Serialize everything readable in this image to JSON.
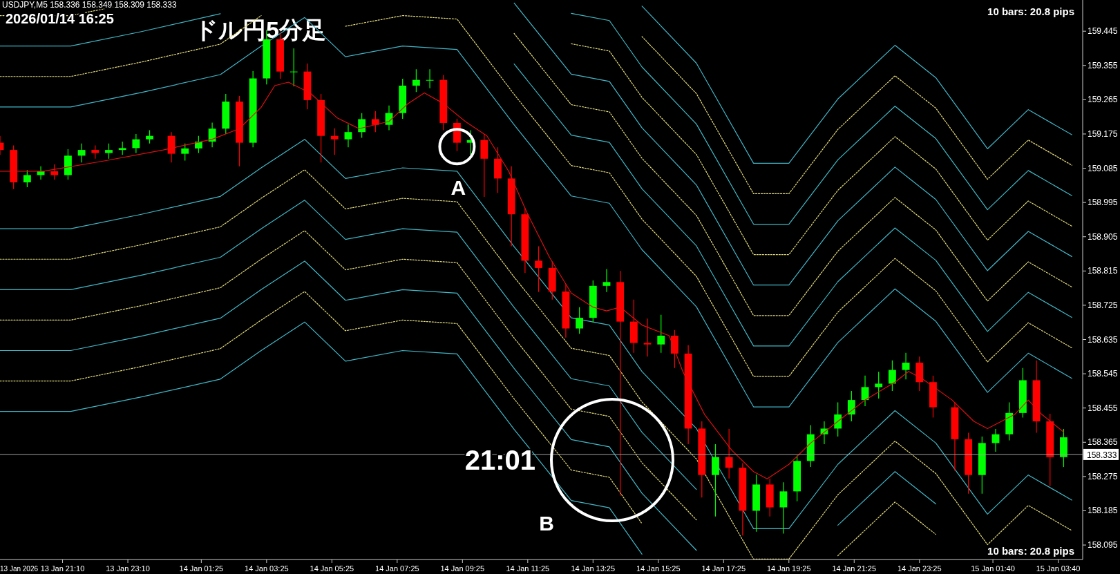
{
  "chart_data": {
    "type": "candlestick",
    "title": "ドル円5分足",
    "annotations": [
      "USDJPY,M5  158.336 158.349 158.309 158.333",
      "2026/01/14 16:25",
      "10 bars: 20.8 pips",
      "10 bars: 20.8 pips",
      "21:01",
      "B",
      "13 Jan 2026",
      {
        "text": "A",
        "x": "2026-01-14T09:15",
        "y": 159.142
      }
    ],
    "x": [
      "2026-01-13T19:15",
      "2026-01-13T19:40",
      "2026-01-13T20:05",
      "2026-01-13T20:30",
      "2026-01-13T20:55",
      "2026-01-13T21:20",
      "2026-01-13T21:45",
      "2026-01-13T22:10",
      "2026-01-13T22:35",
      "2026-01-13T23:00",
      "2026-01-13T23:25",
      "2026-01-13T23:50",
      "2026-01-14T00:30",
      "2026-01-14T00:55",
      "2026-01-14T01:20",
      "2026-01-14T01:45",
      "2026-01-14T02:10",
      "2026-01-14T02:35",
      "2026-01-14T03:00",
      "2026-01-14T03:25",
      "2026-01-14T03:50",
      "2026-01-14T04:15",
      "2026-01-14T04:40",
      "2026-01-14T05:05",
      "2026-01-14T05:30",
      "2026-01-14T05:55",
      "2026-01-14T06:20",
      "2026-01-14T06:45",
      "2026-01-14T07:10",
      "2026-01-14T07:35",
      "2026-01-14T08:00",
      "2026-01-14T08:25",
      "2026-01-14T08:50",
      "2026-01-14T09:15",
      "2026-01-14T09:40",
      "2026-01-14T10:05",
      "2026-01-14T10:30",
      "2026-01-14T10:55",
      "2026-01-14T11:20",
      "2026-01-14T11:45",
      "2026-01-14T12:10",
      "2026-01-14T12:35",
      "2026-01-14T13:00",
      "2026-01-14T13:25",
      "2026-01-14T13:50",
      "2026-01-14T14:15",
      "2026-01-14T14:40",
      "2026-01-14T15:05",
      "2026-01-14T15:30",
      "2026-01-14T15:55",
      "2026-01-14T16:20",
      "2026-01-14T16:45",
      "2026-01-14T17:10",
      "2026-01-14T17:35",
      "2026-01-14T18:00",
      "2026-01-14T18:25",
      "2026-01-14T18:50",
      "2026-01-14T19:15",
      "2026-01-14T19:40",
      "2026-01-14T20:05",
      "2026-01-14T20:30",
      "2026-01-14T20:55",
      "2026-01-14T21:20",
      "2026-01-14T21:45",
      "2026-01-14T22:10",
      "2026-01-14T22:35",
      "2026-01-14T23:00",
      "2026-01-14T23:25",
      "2026-01-14T23:50",
      "2026-01-15T00:30",
      "2026-01-15T00:55",
      "2026-01-15T01:20",
      "2026-01-15T01:45",
      "2026-01-15T02:10",
      "2026-01-15T02:35",
      "2026-01-15T03:00",
      "2026-01-15T03:25",
      "2026-01-15T03:50"
    ],
    "ohlc": [
      [
        159.152,
        159.17,
        159.12,
        159.133
      ],
      [
        159.133,
        159.145,
        159.03,
        159.048
      ],
      [
        159.048,
        159.08,
        159.035,
        159.067
      ],
      [
        159.067,
        159.09,
        159.055,
        159.077
      ],
      [
        159.077,
        159.095,
        159.055,
        159.067
      ],
      [
        159.067,
        159.135,
        159.055,
        159.118
      ],
      [
        159.118,
        159.15,
        159.1,
        159.133
      ],
      [
        159.133,
        159.145,
        159.11,
        159.125
      ],
      [
        159.125,
        159.15,
        159.11,
        159.133
      ],
      [
        159.133,
        159.155,
        159.12,
        159.138
      ],
      [
        159.138,
        159.175,
        159.125,
        159.161
      ],
      [
        159.161,
        159.185,
        159.15,
        159.17
      ],
      [
        159.17,
        159.18,
        159.1,
        159.123
      ],
      [
        159.123,
        159.15,
        159.105,
        159.137
      ],
      [
        159.137,
        159.17,
        159.125,
        159.155
      ],
      [
        159.155,
        159.205,
        159.14,
        159.189
      ],
      [
        159.189,
        159.28,
        159.175,
        159.26
      ],
      [
        159.26,
        159.275,
        159.09,
        159.152
      ],
      [
        159.152,
        159.34,
        159.14,
        159.321
      ],
      [
        159.321,
        159.448,
        159.305,
        159.424
      ],
      [
        159.424,
        159.44,
        159.32,
        159.339
      ],
      [
        159.339,
        159.4,
        159.3,
        159.339
      ],
      [
        159.339,
        159.36,
        159.24,
        159.264
      ],
      [
        159.264,
        159.28,
        159.1,
        159.17
      ],
      [
        159.17,
        159.19,
        159.12,
        159.161
      ],
      [
        159.161,
        159.2,
        159.14,
        159.18
      ],
      [
        159.18,
        159.23,
        159.165,
        159.214
      ],
      [
        159.214,
        159.235,
        159.18,
        159.199
      ],
      [
        159.199,
        159.25,
        159.185,
        159.23
      ],
      [
        159.23,
        159.32,
        159.215,
        159.302
      ],
      [
        159.302,
        159.345,
        159.285,
        159.317
      ],
      [
        159.317,
        159.345,
        159.295,
        159.317
      ],
      [
        159.317,
        159.33,
        159.185,
        159.204
      ],
      [
        159.204,
        159.215,
        159.13,
        159.152
      ],
      [
        159.152,
        159.185,
        159.12,
        159.159
      ],
      [
        159.159,
        159.175,
        159.01,
        159.11
      ],
      [
        159.11,
        159.14,
        159.02,
        159.058
      ],
      [
        159.058,
        159.09,
        158.88,
        158.964
      ],
      [
        158.964,
        158.98,
        158.81,
        158.842
      ],
      [
        158.842,
        158.88,
        158.76,
        158.823
      ],
      [
        158.823,
        158.84,
        158.74,
        158.761
      ],
      [
        158.761,
        158.78,
        158.64,
        158.664
      ],
      [
        158.664,
        158.72,
        158.65,
        158.692
      ],
      [
        158.692,
        158.79,
        158.68,
        158.776
      ],
      [
        158.776,
        158.82,
        158.76,
        158.786
      ],
      [
        158.786,
        158.815,
        158.225,
        158.682
      ],
      [
        158.682,
        158.74,
        158.6,
        158.626
      ],
      [
        158.626,
        158.69,
        158.59,
        158.622
      ],
      [
        158.622,
        158.7,
        158.6,
        158.645
      ],
      [
        158.645,
        158.66,
        158.56,
        158.598
      ],
      [
        158.598,
        158.62,
        158.36,
        158.401
      ],
      [
        158.401,
        158.42,
        158.22,
        158.279
      ],
      [
        158.279,
        158.36,
        158.17,
        158.326
      ],
      [
        158.326,
        158.4,
        158.27,
        158.298
      ],
      [
        158.298,
        158.31,
        158.12,
        158.185
      ],
      [
        158.185,
        158.28,
        158.13,
        158.254
      ],
      [
        158.254,
        158.27,
        158.17,
        158.194
      ],
      [
        158.194,
        158.26,
        158.125,
        158.236
      ],
      [
        158.236,
        158.33,
        158.21,
        158.316
      ],
      [
        158.316,
        158.41,
        158.3,
        158.386
      ],
      [
        158.386,
        158.42,
        158.36,
        158.401
      ],
      [
        158.401,
        158.47,
        158.38,
        158.438
      ],
      [
        158.438,
        158.5,
        158.42,
        158.476
      ],
      [
        158.476,
        158.54,
        158.46,
        158.51
      ],
      [
        158.51,
        158.55,
        158.48,
        158.519
      ],
      [
        158.519,
        158.58,
        158.5,
        158.555
      ],
      [
        158.555,
        158.6,
        158.53,
        158.574
      ],
      [
        158.574,
        158.59,
        158.5,
        158.523
      ],
      [
        158.523,
        158.54,
        158.43,
        158.457
      ],
      [
        158.457,
        158.47,
        158.29,
        158.373
      ],
      [
        158.373,
        158.39,
        158.23,
        158.279
      ],
      [
        158.279,
        158.38,
        158.23,
        158.363
      ],
      [
        158.363,
        158.4,
        158.34,
        158.386
      ],
      [
        158.386,
        158.47,
        158.37,
        158.442
      ],
      [
        158.442,
        158.56,
        158.43,
        158.528
      ],
      [
        158.528,
        158.58,
        158.39,
        158.42
      ],
      [
        158.42,
        158.44,
        158.25,
        158.326
      ],
      [
        158.326,
        158.4,
        158.3,
        158.378
      ]
    ],
    "colors": [
      "#ff0000",
      "#ff0000",
      "#00ff00",
      "#00ff00",
      "#ff0000",
      "#00ff00",
      "#00ff00",
      "#ff0000",
      "#00ff00",
      "#00ff00",
      "#00ff00",
      "#00ff00",
      "#ff0000",
      "#00ff00",
      "#00ff00",
      "#00ff00",
      "#00ff00",
      "#ff0000",
      "#00ff00",
      "#00ff00",
      "#ff0000",
      "#00ff00",
      "#ff0000",
      "#ff0000",
      "#ff0000",
      "#00ff00",
      "#00ff00",
      "#ff0000",
      "#00ff00",
      "#00ff00",
      "#00ff00",
      "#00ff00",
      "#ff0000",
      "#ff0000",
      "#00ff00",
      "#ff0000",
      "#ff0000",
      "#ff0000",
      "#ff0000",
      "#ff0000",
      "#ff0000",
      "#ff0000",
      "#00ff00",
      "#00ff00",
      "#00ff00",
      "#ff0000",
      "#ff0000",
      "#ff0000",
      "#00ff00",
      "#ff0000",
      "#ff0000",
      "#ff0000",
      "#00ff00",
      "#ff0000",
      "#ff0000",
      "#00ff00",
      "#ff0000",
      "#00ff00",
      "#00ff00",
      "#00ff00",
      "#00ff00",
      "#00ff00",
      "#00ff00",
      "#00ff00",
      "#00ff00",
      "#00ff00",
      "#00ff00",
      "#ff0000",
      "#ff0000",
      "#ff0000",
      "#ff0000",
      "#00ff00",
      "#00ff00",
      "#00ff00",
      "#00ff00",
      "#ff0000",
      "#ff0000",
      "#00ff00"
    ],
    "series": [
      {
        "type": "line",
        "color": "#e01010",
        "line_style": "solid",
        "x": [
          "2026-01-13T19:15",
          "2026-01-13T20:35",
          "2026-01-13T22:30",
          "2026-01-14T00:15",
          "2026-01-14T01:45",
          "2026-01-14T02:35",
          "2026-01-14T03:15",
          "2026-01-14T03:40",
          "2026-01-14T04:05",
          "2026-01-14T04:45",
          "2026-01-14T05:35",
          "2026-01-14T06:15",
          "2026-01-14T07:10",
          "2026-01-14T07:45",
          "2026-01-14T08:15",
          "2026-01-14T08:50",
          "2026-01-14T09:30",
          "2026-01-14T10:10",
          "2026-01-14T10:50",
          "2026-01-14T11:25",
          "2026-01-14T12:05",
          "2026-01-14T12:45",
          "2026-01-14T13:25",
          "2026-01-14T13:50",
          "2026-01-14T14:15",
          "2026-01-14T14:55",
          "2026-01-14T15:45",
          "2026-01-14T16:10",
          "2026-01-14T16:50",
          "2026-01-14T17:40",
          "2026-01-14T18:20",
          "2026-01-14T18:45",
          "2026-01-14T19:25",
          "2026-01-14T20:05",
          "2026-01-14T20:55",
          "2026-01-14T21:45",
          "2026-01-14T22:40",
          "2026-01-14T23:05",
          "2026-01-14T23:30",
          "2026-01-15T00:25",
          "2026-01-15T01:05",
          "2026-01-15T01:30",
          "2026-01-15T02:20",
          "2026-01-15T02:45",
          "2026-01-15T03:10",
          "2026-01-15T03:50"
        ],
        "values": [
          159.077,
          159.077,
          159.105,
          159.133,
          159.161,
          159.189,
          159.245,
          159.302,
          159.311,
          159.283,
          159.217,
          159.189,
          159.208,
          159.255,
          159.283,
          159.255,
          159.208,
          159.17,
          159.077,
          158.964,
          158.851,
          158.757,
          158.72,
          158.71,
          158.72,
          158.673,
          158.645,
          158.551,
          158.438,
          158.344,
          158.288,
          158.269,
          158.307,
          158.363,
          158.42,
          158.476,
          158.523,
          158.551,
          158.532,
          158.476,
          158.42,
          158.401,
          158.438,
          158.476,
          158.438,
          158.392
        ]
      },
      {
        "type": "line",
        "color": "#40b8c8",
        "line_style": "solid",
        "x": [
          "2026-01-13T19:15",
          "2026-01-13T21:25",
          "2026-01-13T23:35",
          "2026-01-14T02:00",
          "2026-01-14T03:15",
          "2026-01-14T04:35",
          "2026-01-14T05:50",
          "2026-01-14T07:35",
          "2026-01-14T09:15",
          "2026-01-14T11:00",
          "2026-01-14T12:45",
          "2026-01-14T13:55",
          "2026-01-14T14:55"
        ],
        "values": [
          158.446,
          158.446,
          158.484,
          158.531,
          158.606,
          158.681,
          158.578,
          158.606,
          158.597,
          158.399,
          158.212,
          158.193,
          158.071
        ]
      },
      {
        "type": "line",
        "color": "#e8e07a",
        "line_style": "dotted",
        "x": [
          "2026-01-13T19:15",
          "2026-01-13T21:25",
          "2026-01-13T23:35",
          "2026-01-14T02:00",
          "2026-01-14T03:15",
          "2026-01-14T04:35",
          "2026-01-14T05:50",
          "2026-01-14T07:35",
          "2026-01-14T09:15",
          "2026-01-14T11:00",
          "2026-01-14T12:45",
          "2026-01-14T13:55",
          "2026-01-14T14:55"
        ],
        "values": [
          158.526,
          158.526,
          158.564,
          158.611,
          158.686,
          158.761,
          158.658,
          158.686,
          158.677,
          158.479,
          158.292,
          158.273,
          158.151
        ]
      },
      {
        "type": "line",
        "color": "#41b9c9",
        "line_style": "solid",
        "x": [
          "2026-01-13T19:15",
          "2026-01-13T21:25",
          "2026-01-13T23:35",
          "2026-01-14T02:00",
          "2026-01-14T03:15",
          "2026-01-14T04:35",
          "2026-01-14T05:50",
          "2026-01-14T07:35",
          "2026-01-14T09:15",
          "2026-01-14T11:00",
          "2026-01-14T12:45",
          "2026-01-14T13:55",
          "2026-01-14T14:55",
          "2026-01-14T16:35"
        ],
        "values": [
          158.606,
          158.606,
          158.644,
          158.691,
          158.766,
          158.841,
          158.738,
          158.766,
          158.757,
          158.559,
          158.372,
          158.353,
          158.231,
          158.081
        ]
      },
      {
        "type": "line",
        "color": "#e9e17b",
        "line_style": "dotted",
        "x": [
          "2026-01-13T19:15",
          "2026-01-13T21:25",
          "2026-01-13T23:35",
          "2026-01-14T02:00",
          "2026-01-14T03:15",
          "2026-01-14T04:35",
          "2026-01-14T05:50",
          "2026-01-14T07:35",
          "2026-01-14T09:15",
          "2026-01-14T11:00",
          "2026-01-14T12:45",
          "2026-01-14T13:55",
          "2026-01-14T14:55",
          "2026-01-14T16:35",
          "2026-01-14T18:20",
          "2026-01-14T19:25",
          "2026-01-14T20:55",
          "2026-01-14T22:40",
          "2026-01-14T23:55"
        ],
        "values": [
          158.686,
          158.686,
          158.724,
          158.771,
          158.846,
          158.921,
          158.818,
          158.846,
          158.837,
          158.639,
          158.452,
          158.433,
          158.311,
          158.161,
          null,
          null,
          158.067,
          158.208,
          158.123
        ]
      },
      {
        "type": "line",
        "color": "#3fb7c7",
        "line_style": "solid",
        "x": [
          "2026-01-13T19:15",
          "2026-01-13T21:25",
          "2026-01-13T23:35",
          "2026-01-14T02:00",
          "2026-01-14T03:15",
          "2026-01-14T04:35",
          "2026-01-14T05:50",
          "2026-01-14T07:35",
          "2026-01-14T09:15",
          "2026-01-14T11:00",
          "2026-01-14T12:45",
          "2026-01-14T13:55",
          "2026-01-14T14:55",
          "2026-01-14T16:35",
          "2026-01-14T18:20",
          "2026-01-14T19:25",
          "2026-01-14T20:55",
          "2026-01-14T22:40",
          "2026-01-14T23:55"
        ],
        "values": [
          158.766,
          158.766,
          158.804,
          158.851,
          158.926,
          159.001,
          158.898,
          158.926,
          158.917,
          158.719,
          158.532,
          158.513,
          158.391,
          158.241,
          null,
          null,
          158.147,
          158.288,
          158.203
        ]
      },
      {
        "type": "line",
        "color": "#e7df79",
        "line_style": "dotted",
        "x": [
          "2026-01-13T19:15",
          "2026-01-13T21:25",
          "2026-01-13T23:35",
          "2026-01-14T02:00",
          "2026-01-14T03:15",
          "2026-01-14T04:35",
          "2026-01-14T05:50",
          "2026-01-14T07:35",
          "2026-01-14T09:15",
          "2026-01-14T11:00",
          "2026-01-14T12:45",
          "2026-01-14T13:55",
          "2026-01-14T14:55",
          "2026-01-14T16:35",
          "2026-01-14T18:20",
          "2026-01-14T19:25",
          "2026-01-14T20:55",
          "2026-01-14T22:40",
          "2026-01-14T23:55",
          "2026-01-15T01:30",
          "2026-01-15T02:45",
          "2026-01-15T04:05"
        ],
        "values": [
          158.846,
          158.846,
          158.884,
          158.931,
          159.006,
          159.081,
          158.978,
          159.006,
          158.997,
          158.799,
          158.612,
          158.593,
          158.471,
          158.321,
          158.058,
          158.058,
          158.227,
          158.368,
          158.283,
          158.096,
          158.199,
          158.133
        ]
      },
      {
        "type": "line",
        "color": "#42bac8",
        "line_style": "solid",
        "x": [
          "2026-01-13T19:15",
          "2026-01-13T21:25",
          "2026-01-13T23:35",
          "2026-01-14T02:00",
          "2026-01-14T03:15",
          "2026-01-14T04:35",
          "2026-01-14T05:50",
          "2026-01-14T07:35",
          "2026-01-14T09:15",
          "2026-01-14T11:00",
          "2026-01-14T12:45",
          "2026-01-14T13:55",
          "2026-01-14T14:55",
          "2026-01-14T16:35",
          "2026-01-14T18:20",
          "2026-01-14T19:25",
          "2026-01-14T20:55",
          "2026-01-14T22:40",
          "2026-01-14T23:55",
          "2026-01-15T01:30",
          "2026-01-15T02:45",
          "2026-01-15T04:05"
        ],
        "values": [
          158.926,
          158.926,
          158.964,
          159.011,
          159.086,
          159.161,
          159.058,
          159.086,
          159.077,
          158.879,
          158.692,
          158.673,
          158.551,
          158.401,
          158.138,
          158.138,
          158.307,
          158.448,
          158.363,
          158.176,
          158.279,
          158.213
        ]
      },
      {
        "type": "line",
        "color": "#40b6ca",
        "line_style": "solid",
        "x": [
          "2026-01-13T19:15",
          "2026-01-13T21:25",
          "2026-01-13T23:35",
          "2026-01-14T02:00",
          "2026-01-14T03:15",
          "2026-01-14T04:35",
          "2026-01-14T05:50",
          "2026-01-14T07:35",
          "2026-01-14T09:15",
          "2026-01-14T11:00",
          "2026-01-14T12:45",
          "2026-01-14T13:55",
          "2026-01-14T14:55",
          "2026-01-14T16:35",
          "2026-01-14T18:20",
          "2026-01-14T19:25",
          "2026-01-14T20:55",
          "2026-01-14T22:40",
          "2026-01-14T23:55",
          "2026-01-15T01:30",
          "2026-01-15T02:45",
          "2026-01-15T04:05"
        ],
        "values": [
          159.246,
          159.246,
          159.284,
          159.331,
          159.406,
          159.481,
          159.378,
          159.406,
          159.397,
          159.199,
          159.012,
          158.993,
          158.871,
          158.721,
          158.458,
          158.458,
          158.627,
          158.768,
          158.683,
          158.496,
          158.599,
          158.533
        ]
      },
      {
        "type": "line",
        "color": "#eae07a",
        "line_style": "dotted",
        "x": [
          "2026-01-13T19:15",
          "2026-01-13T21:25",
          "2026-01-13T23:35",
          "2026-01-14T02:00",
          "2026-01-14T03:15",
          "2026-01-14T04:35",
          "2026-01-14T05:50",
          "2026-01-14T07:35",
          "2026-01-14T09:15",
          "2026-01-14T11:00",
          "2026-01-14T12:45",
          "2026-01-14T13:55",
          "2026-01-14T14:55",
          "2026-01-14T16:35",
          "2026-01-14T18:20",
          "2026-01-14T19:25",
          "2026-01-14T20:55",
          "2026-01-14T22:40",
          "2026-01-14T23:55",
          "2026-01-15T01:30",
          "2026-01-15T02:45",
          "2026-01-15T04:05"
        ],
        "values": [
          159.326,
          159.326,
          159.364,
          159.411,
          159.486,
          null,
          159.458,
          159.486,
          159.477,
          159.279,
          159.092,
          159.073,
          158.951,
          158.801,
          158.538,
          158.538,
          158.707,
          158.848,
          158.763,
          158.576,
          158.679,
          158.613
        ]
      },
      {
        "type": "line",
        "color": "#3eb8c6",
        "line_style": "solid",
        "x": [
          "2026-01-13T19:15",
          "2026-01-13T21:25",
          "2026-01-13T23:35",
          "2026-01-14T02:00",
          "2026-01-14T03:15",
          "2026-01-14T11:00",
          "2026-01-14T12:45",
          "2026-01-14T13:55",
          "2026-01-14T14:55",
          "2026-01-14T16:35",
          "2026-01-14T18:20",
          "2026-01-14T19:25",
          "2026-01-14T20:55",
          "2026-01-14T22:40",
          "2026-01-14T23:55",
          "2026-01-15T01:30",
          "2026-01-15T02:45",
          "2026-01-15T04:05"
        ],
        "values": [
          159.406,
          159.406,
          159.444,
          159.491,
          null,
          159.359,
          159.172,
          159.153,
          159.031,
          158.881,
          158.618,
          158.618,
          158.787,
          158.928,
          158.843,
          158.656,
          158.759,
          158.693
        ]
      },
      {
        "type": "line",
        "color": "#e8e27c",
        "line_style": "dotted",
        "x": [
          "2026-01-13T19:15",
          "2026-01-13T21:25",
          "2026-01-13T23:35",
          "2026-01-14T02:00",
          "2026-01-14T11:00",
          "2026-01-14T12:45",
          "2026-01-14T13:55",
          "2026-01-14T14:55",
          "2026-01-14T16:35",
          "2026-01-14T18:20",
          "2026-01-14T19:25",
          "2026-01-14T20:55",
          "2026-01-14T22:40",
          "2026-01-14T23:55",
          "2026-01-15T01:30",
          "2026-01-15T02:45",
          "2026-01-15T04:05"
        ],
        "values": [
          159.486,
          159.486,
          159.524,
          null,
          159.439,
          159.252,
          159.233,
          159.111,
          158.961,
          158.698,
          158.698,
          158.867,
          159.008,
          158.923,
          158.736,
          158.839,
          158.773
        ]
      },
      {
        "type": "line",
        "color": "#43b8ca",
        "line_style": "solid",
        "x": [
          "2026-01-14T11:00",
          "2026-01-14T12:45",
          "2026-01-14T13:55",
          "2026-01-14T14:55",
          "2026-01-14T16:35",
          "2026-01-14T18:20",
          "2026-01-14T19:25",
          "2026-01-14T20:55",
          "2026-01-14T22:40",
          "2026-01-14T23:55",
          "2026-01-15T01:30",
          "2026-01-15T02:45",
          "2026-01-15T04:05"
        ],
        "values": [
          159.519,
          159.332,
          159.313,
          159.191,
          159.041,
          158.778,
          158.778,
          158.947,
          159.088,
          159.003,
          158.816,
          158.919,
          158.853
        ]
      },
      {
        "type": "line",
        "color": "#e6e078",
        "line_style": "dotted",
        "x": [
          "2026-01-14T12:45",
          "2026-01-14T13:55",
          "2026-01-14T14:55",
          "2026-01-14T16:35",
          "2026-01-14T18:20",
          "2026-01-14T19:25",
          "2026-01-14T20:55",
          "2026-01-14T22:40",
          "2026-01-14T23:55",
          "2026-01-15T01:30",
          "2026-01-15T02:45",
          "2026-01-15T04:05"
        ],
        "values": [
          159.412,
          159.393,
          159.271,
          159.121,
          158.858,
          158.858,
          159.027,
          159.168,
          159.083,
          158.896,
          158.999,
          158.933
        ]
      },
      {
        "type": "line",
        "color": "#40bac6",
        "line_style": "solid",
        "x": [
          "2026-01-14T12:45",
          "2026-01-14T13:55",
          "2026-01-14T14:55",
          "2026-01-14T16:35",
          "2026-01-14T18:20",
          "2026-01-14T19:25",
          "2026-01-14T20:55",
          "2026-01-14T22:40",
          "2026-01-14T23:55",
          "2026-01-15T01:30",
          "2026-01-15T02:45",
          "2026-01-15T04:05"
        ],
        "values": [
          159.492,
          159.473,
          159.351,
          159.201,
          158.938,
          158.938,
          159.107,
          159.248,
          159.163,
          158.976,
          159.079,
          159.013
        ]
      },
      {
        "type": "line",
        "color": "#e9df7b",
        "line_style": "dotted",
        "x": [
          "2026-01-14T14:55",
          "2026-01-14T16:35",
          "2026-01-14T18:20",
          "2026-01-14T19:25",
          "2026-01-14T20:55",
          "2026-01-14T22:40",
          "2026-01-14T23:55",
          "2026-01-15T01:30",
          "2026-01-15T02:45",
          "2026-01-15T04:05"
        ],
        "values": [
          159.431,
          159.281,
          159.018,
          159.018,
          159.187,
          159.328,
          159.243,
          159.056,
          159.159,
          159.093
        ]
      },
      {
        "type": "line",
        "color": "#41b6c8",
        "line_style": "solid",
        "x": [
          "2026-01-14T14:55",
          "2026-01-14T16:35",
          "2026-01-14T18:20",
          "2026-01-14T19:25",
          "2026-01-14T20:55",
          "2026-01-14T22:40",
          "2026-01-14T23:55",
          "2026-01-15T01:30",
          "2026-01-15T02:45",
          "2026-01-15T04:05"
        ],
        "values": [
          159.511,
          159.361,
          159.098,
          159.098,
          159.267,
          159.408,
          159.323,
          159.136,
          159.239,
          159.173
        ]
      }
    ],
    "ref_lines": [
      {
        "axis": "y",
        "value": 158.333,
        "label": "158.333",
        "color": "#a0a0a0",
        "line_style": "solid"
      }
    ],
    "xlim": [
      "2026-01-13T19:15",
      "2026-01-15T04:25"
    ],
    "ylim": [
      158.057,
      159.527
    ],
    "xticks": [
      {
        "value": "2026-01-13T21:10",
        "label": "13 Jan 21:10"
      },
      {
        "value": "2026-01-13T23:10",
        "label": "13 Jan 23:10"
      },
      {
        "value": "2026-01-14T01:25",
        "label": "14 Jan 01:25"
      },
      {
        "value": "2026-01-14T03:25",
        "label": "14 Jan 03:25"
      },
      {
        "value": "2026-01-14T05:25",
        "label": "14 Jan 05:25"
      },
      {
        "value": "2026-01-14T07:25",
        "label": "14 Jan 07:25"
      },
      {
        "value": "2026-01-14T09:25",
        "label": "14 Jan 09:25"
      },
      {
        "value": "2026-01-14T11:25",
        "label": "14 Jan 11:25"
      },
      {
        "value": "2026-01-14T13:25",
        "label": "14 Jan 13:25"
      },
      {
        "value": "2026-01-14T15:25",
        "label": "14 Jan 15:25"
      },
      {
        "value": "2026-01-14T17:25",
        "label": "14 Jan 17:25"
      },
      {
        "value": "2026-01-14T19:25",
        "label": "14 Jan 19:25"
      },
      {
        "value": "2026-01-14T21:25",
        "label": "14 Jan 21:25"
      },
      {
        "value": "2026-01-14T23:25",
        "label": "14 Jan 23:25"
      },
      {
        "value": "2026-01-15T01:40",
        "label": "15 Jan 01:40"
      },
      {
        "value": "2026-01-15T03:40",
        "label": "15 Jan 03:40"
      }
    ],
    "yticks": [
      159.445,
      159.355,
      159.265,
      159.175,
      159.085,
      158.995,
      158.905,
      158.815,
      158.725,
      158.635,
      158.545,
      158.455,
      158.365,
      158.275,
      158.185,
      158.095
    ]
  }
}
